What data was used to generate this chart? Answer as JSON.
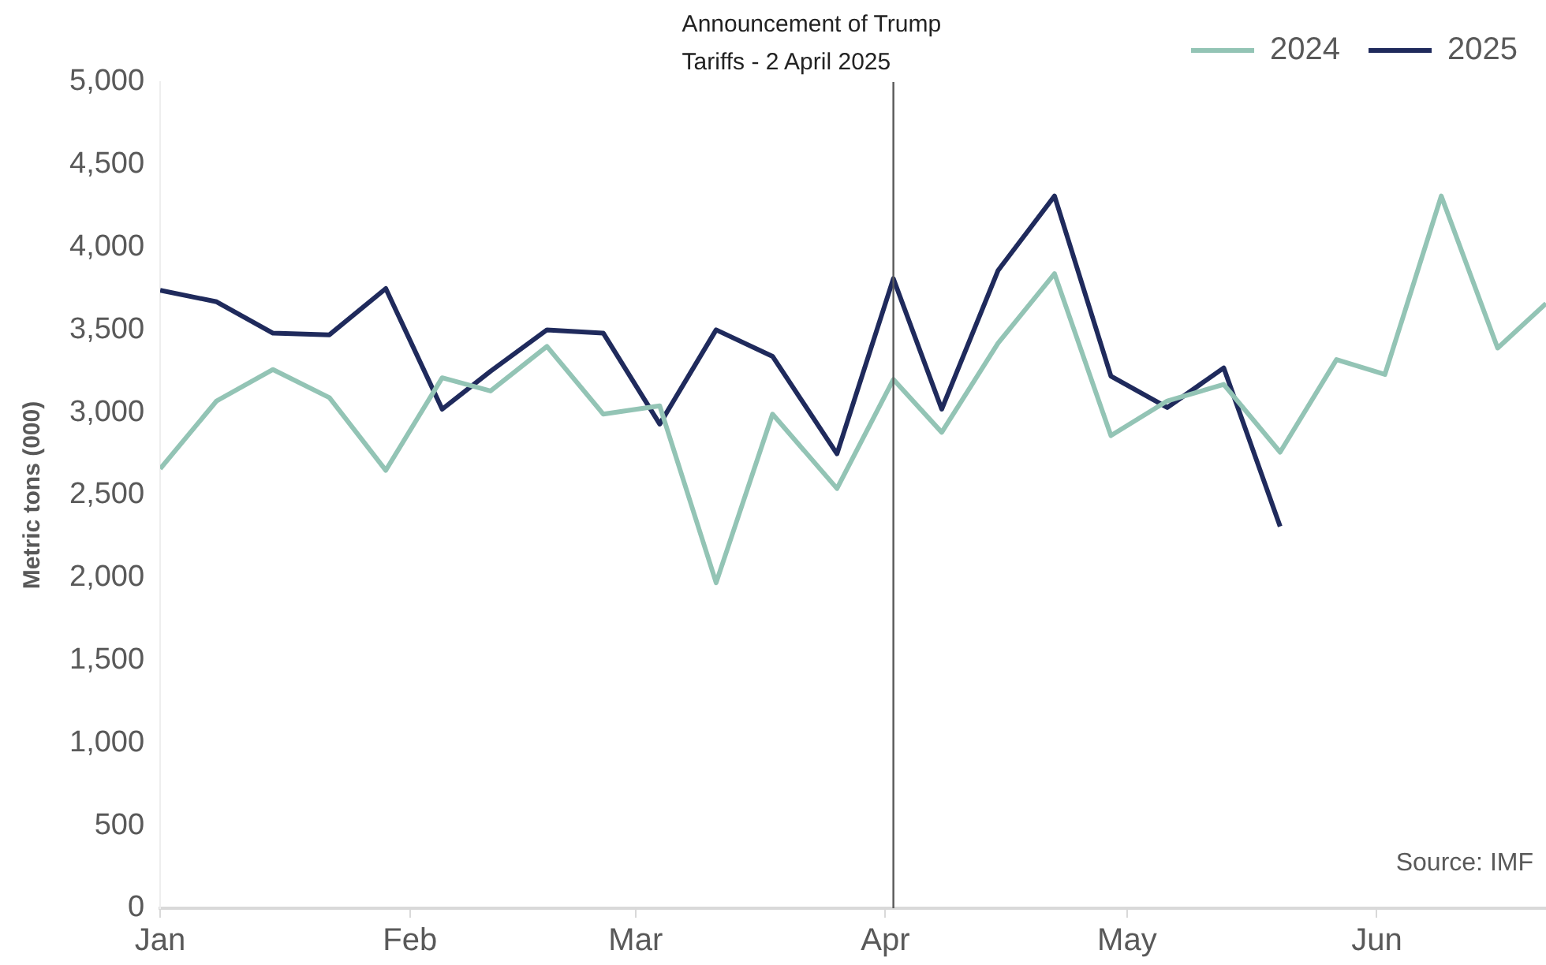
{
  "chart_data": {
    "type": "line",
    "ylabel": "Metric tons (000)",
    "x": [
      "--01-01",
      "--01-08",
      "--01-15",
      "--01-22",
      "--01-29",
      "--02-05",
      "--02-11",
      "--02-18",
      "--02-25",
      "--03-04",
      "--03-11",
      "--03-18",
      "--03-26",
      "--04-02",
      "--04-08",
      "--04-15",
      "--04-22",
      "--04-29",
      "--05-06",
      "--05-13",
      "--05-20",
      "--05-27",
      "--06-02",
      "--06-09",
      "--06-16",
      "--06-22"
    ],
    "series": [
      {
        "name": "2024",
        "color": "#93c4b5",
        "values": [
          2660,
          3070,
          3260,
          3090,
          2650,
          3210,
          3130,
          3400,
          2990,
          3040,
          1970,
          2990,
          2540,
          3200,
          2880,
          3420,
          3840,
          2860,
          3070,
          3170,
          2760,
          3320,
          3230,
          4310,
          3390,
          3660
        ]
      },
      {
        "name": "2025",
        "color": "#1f2a5c",
        "values": [
          3740,
          3670,
          3480,
          3470,
          3750,
          3020,
          3250,
          3500,
          3480,
          2930,
          3500,
          3340,
          2750,
          3810,
          3020,
          3860,
          4310,
          3220,
          3030,
          3270,
          2310,
          null,
          null,
          null,
          null,
          null
        ]
      }
    ],
    "xlim": [
      "--01-01",
      "--06-22"
    ],
    "xticks": [
      {
        "value": "--01-01",
        "label": "Jan"
      },
      {
        "value": "--02-01",
        "label": "Feb"
      },
      {
        "value": "--03-01",
        "label": "Mar"
      },
      {
        "value": "--04-01",
        "label": "Apr"
      },
      {
        "value": "--05-01",
        "label": "May"
      },
      {
        "value": "--06-01",
        "label": "Jun"
      }
    ],
    "ylim": [
      0,
      5000
    ],
    "yticks": [
      {
        "value": 0,
        "label": "0"
      },
      {
        "value": 500,
        "label": "500"
      },
      {
        "value": 1000,
        "label": "1,000"
      },
      {
        "value": 1500,
        "label": "1,500"
      },
      {
        "value": 2000,
        "label": "2,000"
      },
      {
        "value": 2500,
        "label": "2,500"
      },
      {
        "value": 3000,
        "label": "3,000"
      },
      {
        "value": 3500,
        "label": "3,500"
      },
      {
        "value": 4000,
        "label": "4,000"
      },
      {
        "value": 4500,
        "label": "4,500"
      },
      {
        "value": 5000,
        "label": "5,000"
      }
    ],
    "ref_lines": [
      {
        "axis": "x",
        "value": "--04-02",
        "label": "Announcement of Trump\nTariffs - 2 April 2025",
        "color": "#595959"
      }
    ],
    "annotations": [
      "Source: IMF"
    ],
    "legend": "top right",
    "grid": false,
    "marker": "none",
    "line_style": "solid"
  }
}
